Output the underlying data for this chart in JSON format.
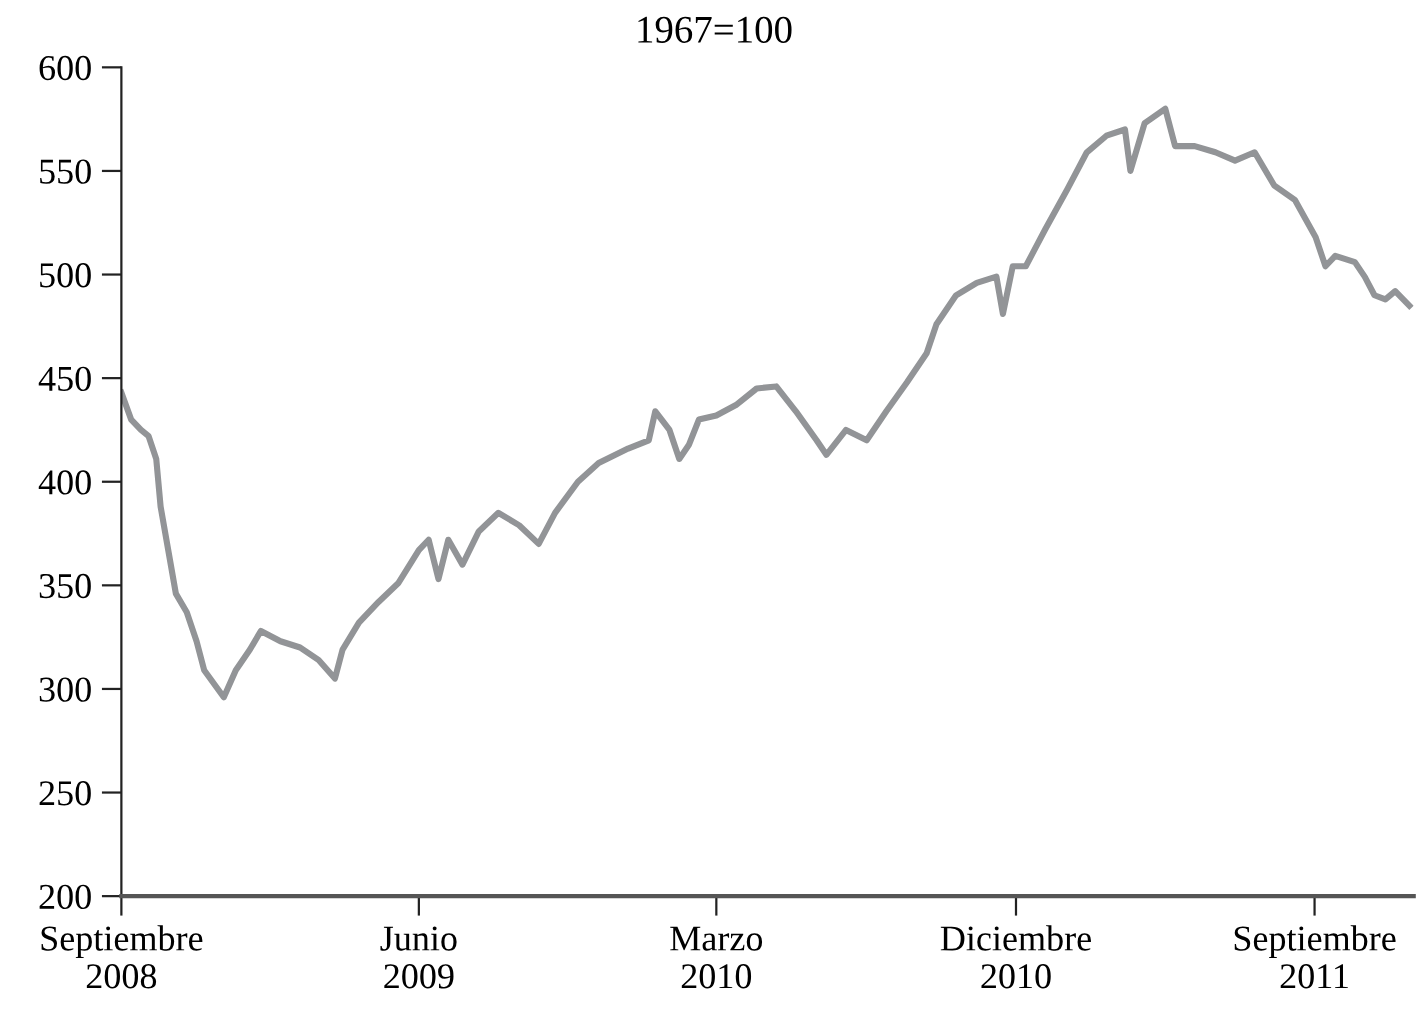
{
  "chart_data": {
    "type": "line",
    "title": "1967=100",
    "x": [
      "2008-09-01",
      "2008-09-10",
      "2008-09-19",
      "2008-09-26",
      "2008-10-03",
      "2008-10-07",
      "2008-10-14",
      "2008-10-21",
      "2008-10-31",
      "2008-11-09",
      "2008-11-16",
      "2008-12-04",
      "2008-12-15",
      "2008-12-28",
      "2009-01-07",
      "2009-01-25",
      "2009-02-12",
      "2009-03-01",
      "2009-03-16",
      "2009-03-23",
      "2009-04-07",
      "2009-04-25",
      "2009-05-13",
      "2009-06-01",
      "2009-06-10",
      "2009-06-19",
      "2009-06-28",
      "2009-07-11",
      "2009-07-26",
      "2009-08-13",
      "2009-09-01",
      "2009-09-19",
      "2009-10-04",
      "2009-10-25",
      "2009-11-13",
      "2009-12-10",
      "2009-12-29",
      "2010-01-04",
      "2010-01-17",
      "2010-01-26",
      "2010-02-04",
      "2010-02-13",
      "2010-03-01",
      "2010-03-19",
      "2010-04-07",
      "2010-04-25",
      "2010-05-13",
      "2010-06-01",
      "2010-06-10",
      "2010-06-28",
      "2010-07-17",
      "2010-08-04",
      "2010-08-23",
      "2010-09-10",
      "2010-09-19",
      "2010-10-07",
      "2010-10-26",
      "2010-11-13",
      "2010-11-19",
      "2010-11-28",
      "2010-12-10",
      "2010-12-28",
      "2011-01-17",
      "2011-02-04",
      "2011-02-22",
      "2011-03-11",
      "2011-03-16",
      "2011-03-29",
      "2011-04-17",
      "2011-04-26",
      "2011-05-14",
      "2011-06-02",
      "2011-06-20",
      "2011-07-08",
      "2011-07-26",
      "2011-08-14",
      "2011-09-02",
      "2011-09-11",
      "2011-09-20",
      "2011-10-08",
      "2011-10-17",
      "2011-10-26",
      "2011-11-05",
      "2011-11-14",
      "2011-11-27"
    ],
    "series": [
      {
        "color": "#929497",
        "values": [
          443,
          430,
          425,
          422,
          411,
          388,
          367,
          346,
          337,
          323,
          309,
          296,
          309,
          319,
          328,
          323,
          320,
          314,
          305,
          319,
          332,
          342,
          351,
          367,
          372,
          353,
          372,
          360,
          376,
          385,
          379,
          370,
          385,
          400,
          409,
          416,
          420,
          434,
          425,
          411,
          418,
          430,
          432,
          437,
          445,
          446,
          434,
          420,
          413,
          425,
          420,
          434,
          448,
          462,
          476,
          490,
          496,
          499,
          481,
          504,
          504,
          522,
          541,
          559,
          567,
          570,
          550,
          573,
          580,
          562,
          562,
          559,
          555,
          559,
          543,
          536,
          518,
          504,
          509,
          506,
          499,
          490,
          488,
          492,
          485
        ]
      }
    ],
    "xlim": [
      "2008-09-01",
      "2011-12-01"
    ],
    "xticks": [
      {
        "value": "2008-09-01",
        "label": "Septiembre\n2008"
      },
      {
        "value": "2009-06-01",
        "label": "Junio\n2009"
      },
      {
        "value": "2010-03-01",
        "label": "Marzo\n2010"
      },
      {
        "value": "2010-12-01",
        "label": "Diciembre\n2010"
      },
      {
        "value": "2011-09-01",
        "label": "Septiembre\n2011"
      }
    ],
    "ylim": [
      200,
      600
    ],
    "yticks": [
      200,
      250,
      300,
      350,
      400,
      450,
      500,
      550,
      600
    ],
    "grid": false,
    "legend": false,
    "marker": "none",
    "line_style": "solid"
  }
}
